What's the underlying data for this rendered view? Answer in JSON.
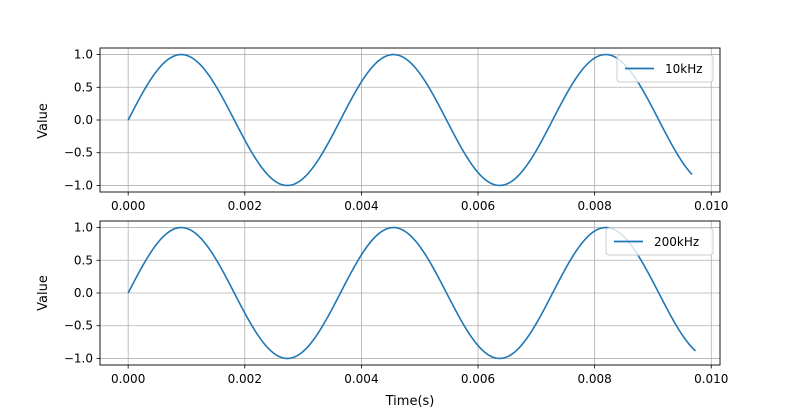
{
  "chart_data": [
    {
      "type": "line",
      "xlabel": "",
      "ylabel": "Value",
      "xlim": [
        -0.000483,
        0.01015
      ],
      "ylim": [
        -1.1,
        1.1
      ],
      "xticks": [
        "0.000",
        "0.002",
        "0.004",
        "0.006",
        "0.008",
        "0.010"
      ],
      "yticks": [
        "1.0",
        "0.5",
        "0.0",
        "−0.5",
        "−1.0"
      ],
      "grid": true,
      "legend_position": "top-right",
      "series": [
        {
          "name": "10kHz",
          "color": "#1f77b4",
          "function": "sin",
          "amplitude": 1,
          "period": 0.00364,
          "x_range": [
            0,
            0.00967
          ]
        }
      ]
    },
    {
      "type": "line",
      "xlabel": "Time(s)",
      "ylabel": "Value",
      "xlim": [
        -0.000483,
        0.01015
      ],
      "ylim": [
        -1.1,
        1.1
      ],
      "xticks": [
        "0.000",
        "0.002",
        "0.004",
        "0.006",
        "0.008",
        "0.010"
      ],
      "yticks": [
        "1.0",
        "0.5",
        "0.0",
        "−0.5",
        "−1.0"
      ],
      "grid": true,
      "legend_position": "top-right",
      "series": [
        {
          "name": "200kHz",
          "color": "#1f77b4",
          "function": "sin",
          "amplitude": 1,
          "period": 0.00364,
          "x_range": [
            0,
            0.00973
          ]
        }
      ]
    }
  ]
}
